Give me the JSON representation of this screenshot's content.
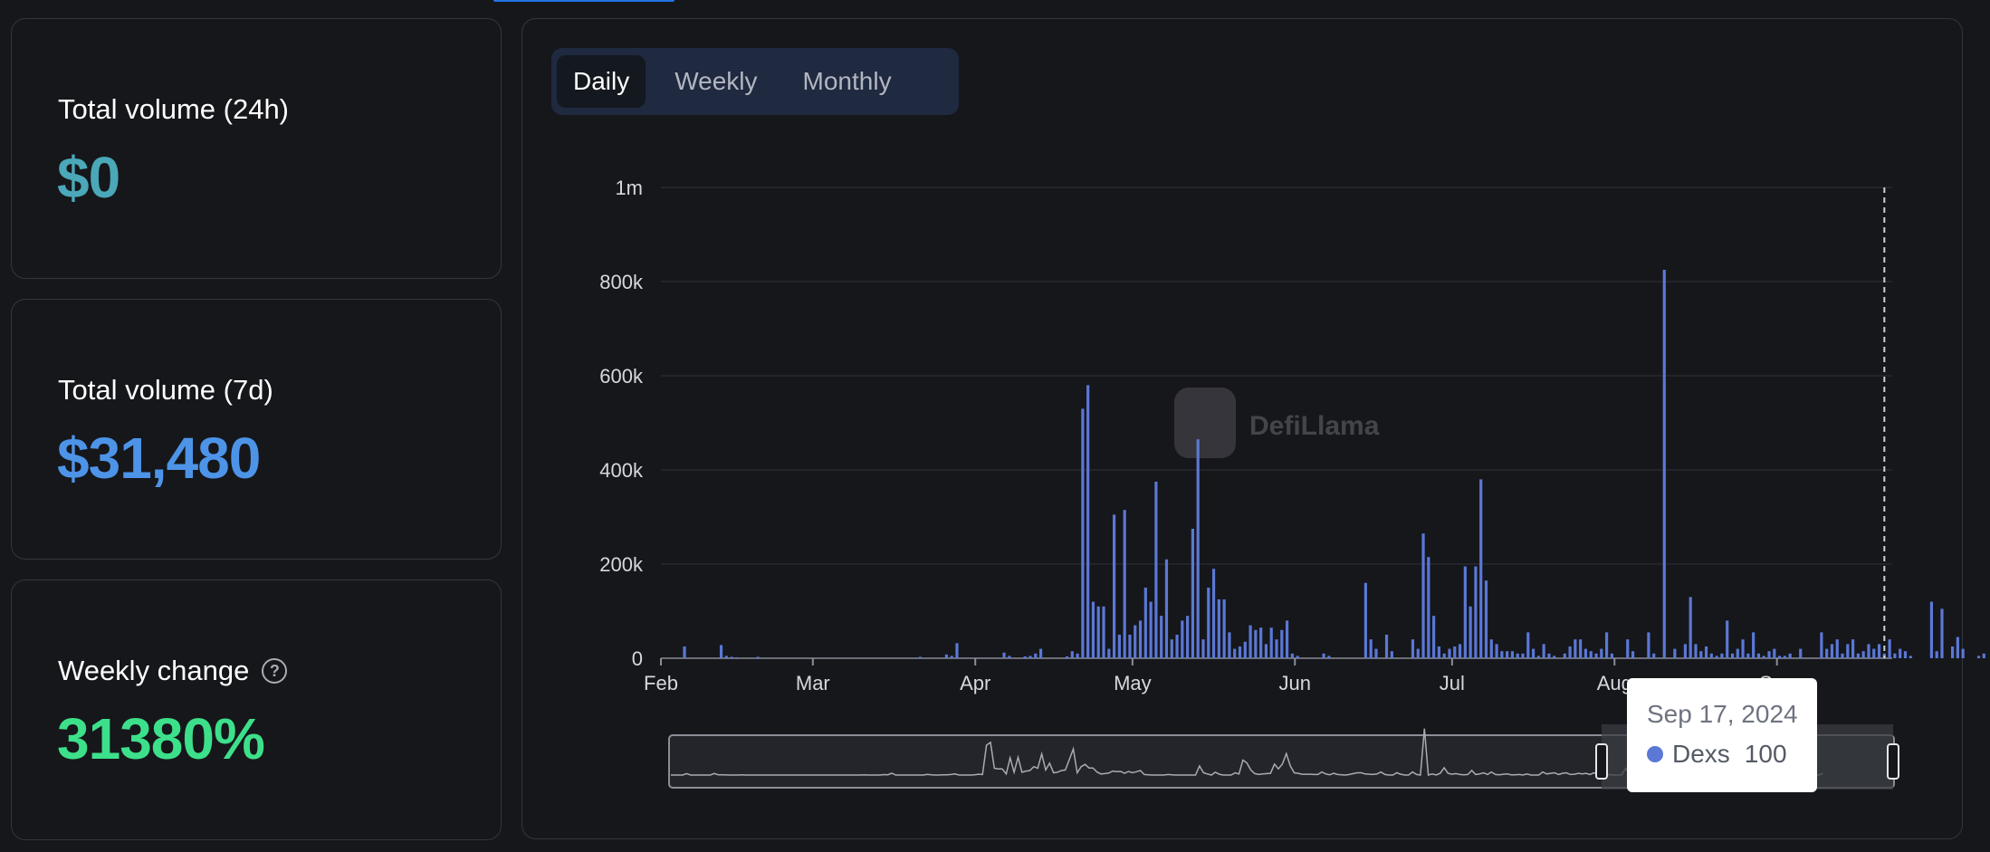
{
  "stats": [
    {
      "label": "Total volume (24h)",
      "value": "$0",
      "color": "#4aa8b8"
    },
    {
      "label": "Total volume (7d)",
      "value": "$31,480",
      "color": "#4d94e8"
    },
    {
      "label": "Weekly change",
      "value": "31380%",
      "color": "#3de08a"
    }
  ],
  "tabs": [
    {
      "label": "Daily",
      "active": true
    },
    {
      "label": "Weekly",
      "active": false
    },
    {
      "label": "Monthly",
      "active": false
    }
  ],
  "watermark": "DefiLlama",
  "tooltip": {
    "date": "Sep 17, 2024",
    "series": "Dexs",
    "value": "100",
    "color": "#5b78d6"
  },
  "chart_data": {
    "type": "bar",
    "series_name": "Dexs",
    "bar_color": "#5b78d6",
    "y_ticks": [
      "0",
      "200k",
      "400k",
      "600k",
      "800k",
      "1m"
    ],
    "ylim": [
      0,
      1000000
    ],
    "grid": true,
    "x_ticks": [
      "Feb",
      "Mar",
      "Apr",
      "May",
      "Jun",
      "Jul",
      "Aug",
      "Sep"
    ],
    "x_tick_days": [
      0,
      29,
      60,
      90,
      121,
      151,
      182,
      213
    ],
    "days_total": 235,
    "highlight_day": 233,
    "values": [
      0,
      0,
      0,
      0,
      25000,
      0,
      0,
      0,
      0,
      0,
      0,
      28000,
      5000,
      3000,
      2000,
      0,
      0,
      0,
      3000,
      0,
      0,
      0,
      0,
      0,
      0,
      0,
      0,
      0,
      0,
      0,
      0,
      0,
      0,
      0,
      0,
      0,
      0,
      0,
      0,
      0,
      0,
      0,
      0,
      0,
      0,
      0,
      0,
      0,
      0,
      3000,
      0,
      0,
      0,
      0,
      8000,
      5000,
      32000,
      0,
      0,
      0,
      0,
      0,
      0,
      0,
      0,
      12000,
      5000,
      0,
      0,
      4000,
      5000,
      10000,
      20000,
      0,
      0,
      0,
      0,
      4000,
      15000,
      10000,
      530000,
      580000,
      120000,
      110000,
      110000,
      20000,
      305000,
      50000,
      315000,
      50000,
      70000,
      80000,
      150000,
      120000,
      375000,
      90000,
      210000,
      40000,
      50000,
      80000,
      90000,
      275000,
      465000,
      40000,
      150000,
      190000,
      125000,
      125000,
      55000,
      20000,
      25000,
      35000,
      70000,
      60000,
      65000,
      30000,
      65000,
      40000,
      60000,
      80000,
      10000,
      5000,
      0,
      0,
      0,
      0,
      10000,
      5000,
      0,
      0,
      0,
      0,
      0,
      0,
      160000,
      40000,
      20000,
      0,
      50000,
      15000,
      0,
      0,
      0,
      40000,
      20000,
      265000,
      215000,
      90000,
      25000,
      10000,
      20000,
      25000,
      30000,
      195000,
      110000,
      195000,
      380000,
      165000,
      40000,
      30000,
      15000,
      15000,
      15000,
      10000,
      10000,
      55000,
      20000,
      5000,
      30000,
      10000,
      5000,
      0,
      10000,
      25000,
      40000,
      40000,
      20000,
      15000,
      10000,
      20000,
      55000,
      10000,
      0,
      0,
      40000,
      15000,
      0,
      0,
      55000,
      10000,
      0,
      825000,
      0,
      20000,
      0,
      30000,
      130000,
      30000,
      15000,
      25000,
      10000,
      5000,
      10000,
      80000,
      10000,
      20000,
      40000,
      10000,
      55000,
      10000,
      5000,
      15000,
      20000,
      5000,
      5000,
      10000,
      0,
      20000,
      0,
      0,
      0,
      55000,
      20000,
      30000,
      40000,
      10000,
      30000,
      40000,
      10000,
      15000,
      30000,
      20000,
      30000,
      10000,
      40000,
      10000,
      20000,
      15000,
      5000,
      0,
      0,
      0,
      120000,
      15000,
      105000,
      0,
      25000,
      45000,
      20000,
      0,
      0,
      5000,
      10000,
      0,
      0,
      5000,
      10000,
      0,
      5000,
      30000,
      20000,
      5000,
      10000,
      30000,
      55000,
      20000,
      10000,
      0,
      5000,
      20000,
      10000,
      0,
      0,
      0,
      0,
      5000,
      0,
      0,
      0,
      0,
      0,
      0,
      0,
      0,
      0,
      0,
      0,
      0,
      0,
      0,
      0,
      0,
      30000
    ]
  }
}
